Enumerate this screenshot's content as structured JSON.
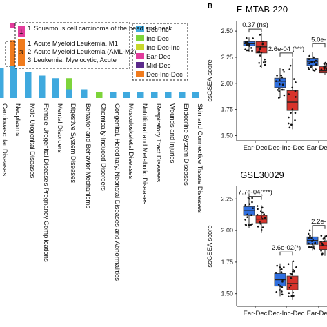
{
  "chart_data": [
    {
      "type": "bar",
      "categories": [
        "Cardiovascular Diseases",
        "Neoplasms",
        "Male Urogenital Diseases",
        "Female Urogenital Diseases Pregnancy Complications",
        "Mental Disorders",
        "Digestive System Diseases",
        "Behavior and Behavior Mechanisms",
        "Chemically-Induced Disorders",
        "Congenital, Hereditary, Neonatal Diseases and Abnormalities",
        "Musculoskeletal Diseases",
        "Nutritional and Metabolic Diseases",
        "Respiratory Tract Diseases",
        "Wounds and Injuries",
        "Endocrine System Diseases",
        "Skin and Connective Tissue Diseases"
      ],
      "series": [
        {
          "name": "Dec-Inc",
          "color": "#3fa9de",
          "values": [
            3.5,
            3.7,
            3.0,
            2.6,
            2.3,
            1.0,
            1.0,
            0,
            0.65,
            0.65,
            0.65,
            0.65,
            0.65,
            0.65,
            0.65
          ]
        },
        {
          "name": "Inc-Dec",
          "color": "#7dd43a",
          "values": [
            0,
            0,
            0,
            0,
            0,
            1.3,
            0,
            0.65,
            0,
            0,
            0,
            0,
            0,
            0,
            0
          ]
        },
        {
          "name": "Inc-Dec-Inc",
          "color": "#c9d72b",
          "values": [
            0,
            0,
            0,
            0,
            0,
            0,
            0,
            0,
            0,
            0,
            0,
            0,
            0,
            0,
            0
          ]
        },
        {
          "name": "Ear-Dec",
          "color": "#e23c9c",
          "values": [
            0,
            1,
            0,
            0,
            0,
            0,
            0,
            0,
            0,
            0,
            0,
            0,
            0,
            0,
            0
          ]
        },
        {
          "name": "Mid-Dec",
          "color": "#5b2a8c",
          "values": [
            0,
            0,
            0,
            0,
            0,
            0,
            0,
            0,
            0,
            0,
            0,
            0,
            0,
            0,
            0
          ]
        },
        {
          "name": "Dec-Inc-Dec",
          "color": "#f07b1d",
          "values": [
            0,
            3,
            0,
            0,
            0,
            0,
            0,
            0,
            0,
            0,
            0,
            0,
            0,
            0,
            0
          ]
        }
      ],
      "legend": "top-right",
      "callouts": [
        {
          "count": "1",
          "color": "#e23c9c",
          "items": [
            "Squamous cell carcinoma of the head and neck"
          ]
        },
        {
          "count": "3",
          "color": "#f07b1d",
          "items": [
            "Acute Myeloid Leukemia, M1",
            "Acute Myeloid Leukemia (AML-M2)",
            "Leukemia, Myelocytic, Acute"
          ]
        }
      ]
    },
    {
      "type": "box",
      "panel_label": "B",
      "title": "E-MTAB-220",
      "ylabel": "ssGSEA score",
      "ylim": [
        1.45,
        2.6
      ],
      "yticks": [
        "1.50",
        "1.75",
        "2.00",
        "2.25",
        "2.50"
      ],
      "categories": [
        "Ear-Dec",
        "Dec-Inc-Dec",
        "Ear-Dec"
      ],
      "boxes": [
        {
          "group": 0,
          "color": "#2f6fe0",
          "min": 2.3,
          "q1": 2.36,
          "median": 2.38,
          "q3": 2.4,
          "max": 2.44
        },
        {
          "group": 0,
          "color": "#d8332b",
          "min": 2.15,
          "q1": 2.29,
          "median": 2.35,
          "q3": 2.4,
          "max": 2.48
        },
        {
          "group": 1,
          "color": "#2f6fe0",
          "min": 1.86,
          "q1": 1.96,
          "median": 2.02,
          "q3": 2.05,
          "max": 2.15
        },
        {
          "group": 1,
          "color": "#d8332b",
          "min": 1.56,
          "q1": 1.74,
          "median": 1.82,
          "q3": 1.93,
          "max": 2.24
        },
        {
          "group": 2,
          "color": "#2f6fe0",
          "min": 2.12,
          "q1": 2.17,
          "median": 2.21,
          "q3": 2.24,
          "max": 2.3
        },
        {
          "group": 2,
          "color": "#d8332b",
          "min": 2.08,
          "q1": 2.1,
          "median": 2.12,
          "q3": 2.16,
          "max": 2.2
        }
      ],
      "annotations": [
        {
          "text": "0.37 (ns)",
          "group": 0,
          "y": 2.52
        },
        {
          "text": "2.6e-04 (***)",
          "group": 1,
          "y": 2.29
        },
        {
          "text": "5.0e-",
          "group": 2,
          "y": 2.38
        }
      ]
    },
    {
      "type": "box",
      "title": "GSE30029",
      "ylabel": "ssGSEA score",
      "ylim": [
        1.4,
        2.35
      ],
      "yticks": [
        "1.50",
        "1.75",
        "2.00",
        "2.25"
      ],
      "categories": [
        "Ear-Dec",
        "Dec-Inc-Dec",
        "Ear-Dec"
      ],
      "boxes": [
        {
          "group": 0,
          "color": "#2f6fe0",
          "min": 2.02,
          "q1": 2.12,
          "median": 2.16,
          "q3": 2.19,
          "max": 2.28
        },
        {
          "group": 0,
          "color": "#d8332b",
          "min": 1.98,
          "q1": 2.06,
          "median": 2.09,
          "q3": 2.12,
          "max": 2.2
        },
        {
          "group": 1,
          "color": "#2f6fe0",
          "min": 1.48,
          "q1": 1.56,
          "median": 1.61,
          "q3": 1.66,
          "max": 1.74
        },
        {
          "group": 1,
          "color": "#d8332b",
          "min": 1.45,
          "q1": 1.53,
          "median": 1.58,
          "q3": 1.64,
          "max": 1.76
        },
        {
          "group": 2,
          "color": "#2f6fe0",
          "min": 1.84,
          "q1": 1.89,
          "median": 1.92,
          "q3": 1.95,
          "max": 2.03
        },
        {
          "group": 2,
          "color": "#d8332b",
          "min": 1.8,
          "q1": 1.85,
          "median": 1.88,
          "q3": 1.91,
          "max": 1.96
        }
      ],
      "annotations": [
        {
          "text": "7.7e-04(***)",
          "group": 0,
          "y": 2.27
        },
        {
          "text": "2.6e-02(*)",
          "group": 1,
          "y": 1.83
        },
        {
          "text": "2.2e-",
          "group": 2,
          "y": 2.04
        }
      ]
    }
  ]
}
